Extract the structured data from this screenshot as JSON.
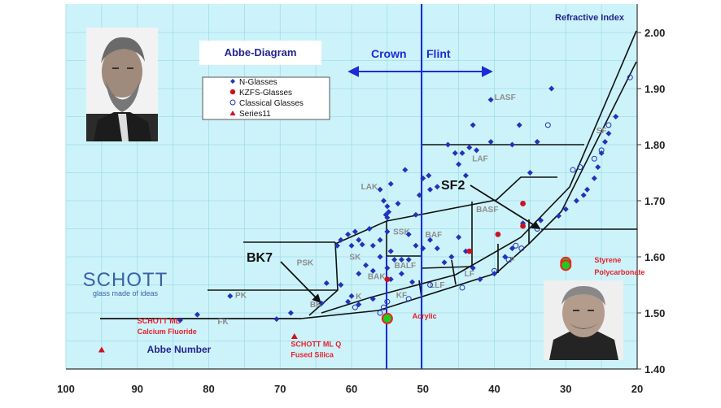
{
  "chart_data": {
    "type": "scatter",
    "title": "Abbe-Diagram",
    "xlabel": "Abbe Number",
    "ylabel": "Refractive Index",
    "xlim": [
      100,
      20
    ],
    "ylim": [
      1.4,
      2.0
    ],
    "x_ticks": [
      "100",
      "90",
      "80",
      "70",
      "60",
      "50",
      "40",
      "30",
      "20"
    ],
    "y_ticks": [
      "1.40",
      "1.50",
      "1.60",
      "1.70",
      "1.80",
      "1.90",
      "2.00"
    ],
    "grid": true,
    "legend_position": "top-left",
    "header": {
      "crown": "Crown",
      "flint": "Flint"
    },
    "logo": {
      "brand": "SCHOTT",
      "tagline": "glass made of ideas"
    },
    "series": [
      {
        "name": "N-Glasses",
        "marker": "diamond",
        "color": "#2233bb",
        "points": [
          [
            84,
            1.487
          ],
          [
            81.6,
            1.497
          ],
          [
            77,
            1.53
          ],
          [
            70.5,
            1.489
          ],
          [
            68.5,
            1.5
          ],
          [
            64.2,
            1.517
          ],
          [
            62,
            1.62
          ],
          [
            61.5,
            1.63
          ],
          [
            60.5,
            1.64
          ],
          [
            60,
            1.62
          ],
          [
            59.5,
            1.645
          ],
          [
            59,
            1.63
          ],
          [
            58.5,
            1.622
          ],
          [
            57.5,
            1.65
          ],
          [
            57,
            1.62
          ],
          [
            56,
            1.63
          ],
          [
            55,
            1.67
          ],
          [
            55,
            1.645
          ],
          [
            54.5,
            1.61
          ],
          [
            54,
            1.595
          ],
          [
            63.5,
            1.553
          ],
          [
            61.5,
            1.55
          ],
          [
            59,
            1.57
          ],
          [
            58,
            1.585
          ],
          [
            57,
            1.575
          ],
          [
            56,
            1.6
          ],
          [
            55,
            1.58
          ],
          [
            54.5,
            1.56
          ],
          [
            53,
            1.57
          ],
          [
            60.5,
            1.52
          ],
          [
            60,
            1.53
          ],
          [
            59,
            1.515
          ],
          [
            57,
            1.525
          ],
          [
            55.5,
            1.7
          ],
          [
            55,
            1.69
          ],
          [
            54.8,
            1.68
          ],
          [
            55.2,
            1.675
          ],
          [
            56,
            1.72
          ],
          [
            54.5,
            1.73
          ],
          [
            53.5,
            1.695
          ],
          [
            52.5,
            1.755
          ],
          [
            51,
            1.675
          ],
          [
            50.5,
            1.71
          ],
          [
            50,
            1.74
          ],
          [
            49.2,
            1.745
          ],
          [
            49,
            1.72
          ],
          [
            48,
            1.725
          ],
          [
            46.5,
            1.8
          ],
          [
            45.5,
            1.785
          ],
          [
            44.5,
            1.785
          ],
          [
            45,
            1.765
          ],
          [
            44,
            1.745
          ],
          [
            43.5,
            1.795
          ],
          [
            42.5,
            1.79
          ],
          [
            43,
            1.835
          ],
          [
            40.5,
            1.88
          ],
          [
            40.5,
            1.805
          ],
          [
            37.5,
            1.8
          ],
          [
            36.5,
            1.835
          ],
          [
            35,
            1.75
          ],
          [
            34,
            1.805
          ],
          [
            32,
            1.9
          ],
          [
            52,
            1.64
          ],
          [
            51,
            1.62
          ],
          [
            50,
            1.615
          ],
          [
            49,
            1.63
          ],
          [
            48,
            1.615
          ],
          [
            47,
            1.59
          ],
          [
            46,
            1.6
          ],
          [
            45,
            1.635
          ],
          [
            44,
            1.61
          ],
          [
            43,
            1.58
          ],
          [
            52,
            1.595
          ],
          [
            53,
            1.595
          ],
          [
            51.5,
            1.555
          ],
          [
            33.5,
            1.665
          ],
          [
            31,
            1.673
          ],
          [
            30,
            1.685
          ],
          [
            28.5,
            1.7
          ],
          [
            27.5,
            1.71
          ],
          [
            27,
            1.72
          ],
          [
            26,
            1.74
          ],
          [
            25.5,
            1.76
          ],
          [
            25,
            1.785
          ],
          [
            24.5,
            1.805
          ],
          [
            24,
            1.82
          ],
          [
            23,
            1.85
          ],
          [
            36,
            1.66
          ],
          [
            37.5,
            1.615
          ],
          [
            38.5,
            1.6
          ],
          [
            40,
            1.57
          ],
          [
            42,
            1.56
          ]
        ]
      },
      {
        "name": "KZFS-Glasses",
        "marker": "circle",
        "color": "#cc1122",
        "points": [
          [
            36,
            1.695
          ],
          [
            39.5,
            1.64
          ],
          [
            36,
            1.655
          ],
          [
            43.5,
            1.61
          ],
          [
            55,
            1.56
          ]
        ]
      },
      {
        "name": "Classical Glasses",
        "marker": "open-circle",
        "color": "#2233bb",
        "points": [
          [
            59.5,
            1.51
          ],
          [
            56,
            1.5
          ],
          [
            52,
            1.525
          ],
          [
            49,
            1.55
          ],
          [
            44.5,
            1.545
          ],
          [
            40,
            1.575
          ],
          [
            38,
            1.595
          ],
          [
            37,
            1.62
          ],
          [
            36.2,
            1.615
          ],
          [
            34,
            1.65
          ],
          [
            32.5,
            1.835
          ],
          [
            29,
            1.755
          ],
          [
            28,
            1.76
          ],
          [
            26,
            1.775
          ],
          [
            25,
            1.79
          ],
          [
            24,
            1.835
          ],
          [
            21,
            1.92
          ],
          [
            55.5,
            1.51
          ],
          [
            55,
            1.52
          ]
        ]
      },
      {
        "name": "Series11",
        "marker": "triangle",
        "color": "#cc1122",
        "points": [
          [
            95,
            1.434
          ],
          [
            68,
            1.458
          ]
        ]
      }
    ],
    "region_labels": [
      {
        "text": "LASF",
        "x": 38.5,
        "y": 1.88
      },
      {
        "text": "SF",
        "x": 25,
        "y": 1.82
      },
      {
        "text": "LAF",
        "x": 42,
        "y": 1.77
      },
      {
        "text": "LAK",
        "x": 57.5,
        "y": 1.72
      },
      {
        "text": "BASF",
        "x": 41,
        "y": 1.68
      },
      {
        "text": "SSK",
        "x": 53,
        "y": 1.64
      },
      {
        "text": "BAF",
        "x": 48.5,
        "y": 1.635
      },
      {
        "text": "PSK",
        "x": 66.5,
        "y": 1.585
      },
      {
        "text": "SK",
        "x": 59.5,
        "y": 1.595
      },
      {
        "text": "BALF",
        "x": 52.5,
        "y": 1.58
      },
      {
        "text": "F",
        "x": 37.5,
        "y": 1.59
      },
      {
        "text": "LF",
        "x": 43.5,
        "y": 1.565
      },
      {
        "text": "BAK",
        "x": 56.5,
        "y": 1.56
      },
      {
        "text": "LLF",
        "x": 48,
        "y": 1.545
      },
      {
        "text": "PK",
        "x": 75.5,
        "y": 1.527
      },
      {
        "text": "K",
        "x": 59,
        "y": 1.525
      },
      {
        "text": "KF",
        "x": 53,
        "y": 1.527
      },
      {
        "text": "BK",
        "x": 65,
        "y": 1.51
      },
      {
        "text": "FK",
        "x": 78,
        "y": 1.48
      }
    ],
    "callouts": [
      {
        "text": "BK7",
        "x": 64.2,
        "y": 1.517
      },
      {
        "text": "SF2",
        "x": 33.5,
        "y": 1.648
      }
    ],
    "annotations": [
      {
        "text": "SCHOTT ML",
        "x": 90,
        "y": 1.481
      },
      {
        "text": "Calcium Fluoride",
        "x": 90,
        "y": 1.462
      },
      {
        "text": "SCHOTT ML Q",
        "x": 68.5,
        "y": 1.44
      },
      {
        "text": "Fused Silica",
        "x": 68.5,
        "y": 1.421
      },
      {
        "text": "Acrylic",
        "x": 51.5,
        "y": 1.49
      },
      {
        "text": "Styrene",
        "x": 26,
        "y": 1.59
      },
      {
        "text": "Polycarbonate",
        "x": 26,
        "y": 1.568
      }
    ],
    "special_points": [
      {
        "name": "Acrylic",
        "x": 55,
        "y": 1.49
      },
      {
        "name": "Styrene",
        "x": 30,
        "y": 1.59
      },
      {
        "name": "Polycarbonate",
        "x": 30,
        "y": 1.585
      }
    ]
  },
  "colors": {
    "plot_bg": "#cdf3fa",
    "grid": "#9fdde8",
    "axis_blue": "#1d2bd6",
    "region_line": "#111111",
    "title_blue": "#23238e",
    "annotation_red": "#e8202a",
    "special_marker_fill": "#1ecc1e",
    "special_marker_ring": "#ee2222"
  }
}
